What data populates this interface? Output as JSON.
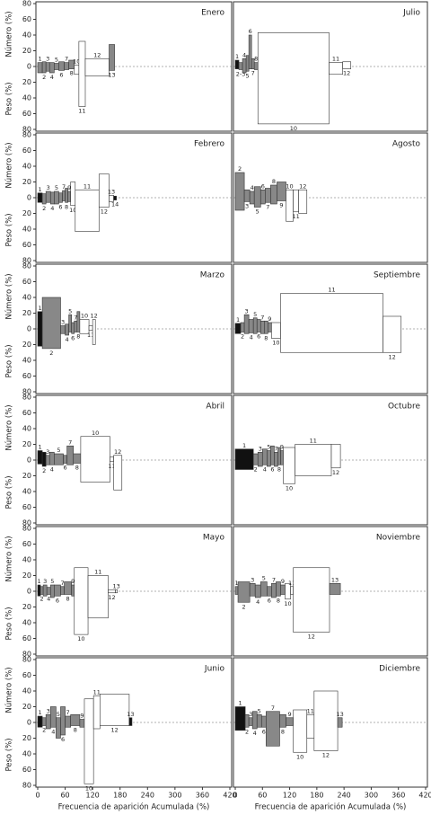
{
  "axes": {
    "xlim": [
      0,
      420
    ],
    "xticks": [
      0,
      60,
      120,
      180,
      240,
      300,
      360,
      420
    ],
    "ylim": [
      0,
      80
    ],
    "number_ticks": [
      80,
      60,
      40,
      20,
      0
    ],
    "weight_ticks": [
      20,
      40,
      60,
      80
    ],
    "x_label": "Frecuencia de aparición Acumulada (%)",
    "y_label_number": "Número (%)",
    "y_label_weight": "Peso (%)"
  },
  "chart_data": [
    {
      "type": "costello",
      "title": "Enero",
      "categories": [
        "1",
        "2",
        "3",
        "4",
        "5",
        "6",
        "7",
        "8",
        "10",
        "11",
        "12",
        "13"
      ],
      "frecuencia": [
        10,
        8,
        8,
        10,
        10,
        12,
        10,
        12,
        10,
        14,
        52,
        12
      ],
      "numero": [
        5,
        6,
        5,
        5,
        4,
        6,
        5,
        8,
        2,
        32,
        10,
        28
      ],
      "peso": [
        8,
        8,
        6,
        8,
        4,
        5,
        4,
        3,
        10,
        51,
        12,
        5
      ],
      "colors": [
        "#888",
        "#888",
        "#888",
        "#888",
        "#888",
        "#888",
        "#888",
        "#888",
        "#fff",
        "#fff",
        "#fff",
        "#888"
      ]
    },
    {
      "type": "costello",
      "title": "Julio",
      "categories": [
        "1",
        "2-3",
        "4",
        "5",
        "6",
        "7",
        "8",
        "10",
        "11",
        "12"
      ],
      "frecuencia": [
        8,
        8,
        8,
        6,
        6,
        6,
        8,
        157,
        30,
        18
      ],
      "numero": [
        8,
        5,
        10,
        14,
        40,
        10,
        5,
        43,
        5,
        6
      ],
      "peso": [
        3,
        4,
        8,
        6,
        3,
        3,
        4,
        73,
        10,
        3
      ],
      "colors": [
        "#111",
        "#888",
        "#888",
        "#888",
        "#888",
        "#888",
        "#888",
        "#fff",
        "#fff",
        "#fff"
      ]
    },
    {
      "type": "costello",
      "title": "Febrero",
      "categories": [
        "1",
        "2",
        "3",
        "4",
        "5",
        "6",
        "7",
        "8",
        "9",
        "10",
        "11",
        "12",
        "13",
        "14"
      ],
      "frecuencia": [
        10,
        8,
        10,
        8,
        10,
        8,
        6,
        6,
        6,
        10,
        52,
        22,
        10,
        6
      ],
      "numero": [
        6,
        5,
        8,
        7,
        8,
        6,
        9,
        12,
        8,
        20,
        10,
        30,
        3,
        2
      ],
      "peso": [
        6,
        8,
        6,
        8,
        8,
        6,
        4,
        6,
        5,
        10,
        43,
        12,
        5,
        3
      ],
      "colors": [
        "#111",
        "#888",
        "#888",
        "#888",
        "#888",
        "#888",
        "#888",
        "#888",
        "#888",
        "#fff",
        "#fff",
        "#fff",
        "#fff",
        "#111"
      ]
    },
    {
      "type": "costello",
      "title": "Agosto",
      "categories": [
        "2",
        "3",
        "4",
        "5",
        "6",
        "7",
        "8",
        "9",
        "10",
        "11",
        "12"
      ],
      "frecuencia": [
        20,
        12,
        10,
        14,
        10,
        12,
        14,
        20,
        16,
        12,
        18
      ],
      "numero": [
        32,
        10,
        8,
        14,
        10,
        12,
        16,
        20,
        10,
        10,
        10
      ],
      "peso": [
        16,
        5,
        8,
        12,
        8,
        6,
        8,
        4,
        30,
        18,
        20
      ],
      "colors": [
        "#888",
        "#888",
        "#888",
        "#888",
        "#888",
        "#888",
        "#888",
        "#888",
        "#fff",
        "#fff",
        "#fff"
      ]
    },
    {
      "type": "costello",
      "title": "Marzo",
      "categories": [
        "1",
        "2",
        "3",
        "4",
        "5",
        "6",
        "7",
        "8",
        "10",
        "11",
        "12"
      ],
      "frecuencia": [
        10,
        40,
        10,
        8,
        6,
        6,
        6,
        6,
        20,
        8,
        6
      ],
      "numero": [
        22,
        40,
        4,
        6,
        18,
        8,
        10,
        22,
        12,
        4,
        12
      ],
      "peso": [
        22,
        25,
        6,
        8,
        4,
        6,
        4,
        4,
        6,
        2,
        20
      ],
      "colors": [
        "#111",
        "#888",
        "#888",
        "#888",
        "#888",
        "#888",
        "#888",
        "#888",
        "#fff",
        "#fff",
        "#fff"
      ]
    },
    {
      "type": "costello",
      "title": "Septiembre",
      "categories": [
        "1",
        "2",
        "3",
        "4",
        "5",
        "6",
        "7",
        "8",
        "9",
        "10",
        "11",
        "12"
      ],
      "frecuencia": [
        12,
        8,
        10,
        10,
        8,
        8,
        8,
        8,
        8,
        20,
        226,
        40
      ],
      "numero": [
        7,
        8,
        18,
        12,
        14,
        12,
        10,
        10,
        8,
        8,
        45,
        16
      ],
      "peso": [
        6,
        4,
        6,
        5,
        6,
        4,
        6,
        6,
        4,
        12,
        30,
        30
      ],
      "colors": [
        "#111",
        "#888",
        "#888",
        "#888",
        "#888",
        "#888",
        "#888",
        "#888",
        "#888",
        "#fff",
        "#fff",
        "#fff"
      ]
    },
    {
      "type": "costello",
      "title": "Abril",
      "categories": [
        "1",
        "2",
        "3",
        "4",
        "5",
        "6",
        "7",
        "8",
        "10",
        "11",
        "12"
      ],
      "frecuencia": [
        10,
        8,
        8,
        10,
        20,
        8,
        14,
        16,
        64,
        8,
        18
      ],
      "numero": [
        12,
        10,
        6,
        10,
        8,
        6,
        18,
        8,
        30,
        4,
        6
      ],
      "peso": [
        5,
        8,
        6,
        6,
        6,
        4,
        6,
        4,
        28,
        2,
        38
      ],
      "colors": [
        "#111",
        "#111",
        "#888",
        "#888",
        "#888",
        "#888",
        "#888",
        "#888",
        "#fff",
        "#fff",
        "#fff"
      ]
    },
    {
      "type": "costello",
      "title": "Octubre",
      "categories": [
        "1",
        "2",
        "3",
        "4",
        "5",
        "6",
        "7",
        "8",
        "9",
        "10",
        "11",
        "12"
      ],
      "frecuencia": [
        40,
        10,
        10,
        10,
        8,
        8,
        8,
        6,
        6,
        26,
        80,
        20
      ],
      "numero": [
        14,
        8,
        10,
        14,
        12,
        18,
        10,
        16,
        12,
        16,
        20,
        20
      ],
      "peso": [
        12,
        6,
        8,
        6,
        8,
        6,
        8,
        6,
        6,
        30,
        20,
        10
      ],
      "colors": [
        "#111",
        "#888",
        "#888",
        "#888",
        "#888",
        "#888",
        "#888",
        "#888",
        "#888",
        "#fff",
        "#fff",
        "#fff"
      ]
    },
    {
      "type": "costello",
      "title": "Mayo",
      "categories": [
        "1",
        "2",
        "3",
        "4",
        "5",
        "6",
        "7",
        "8",
        "9",
        "10",
        "11",
        "12",
        "13"
      ],
      "frecuencia": [
        6,
        6,
        8,
        8,
        8,
        14,
        8,
        16,
        6,
        30,
        44,
        16,
        4
      ],
      "numero": [
        8,
        6,
        8,
        5,
        8,
        8,
        6,
        12,
        8,
        30,
        20,
        2,
        2
      ],
      "peso": [
        6,
        4,
        6,
        4,
        8,
        6,
        4,
        4,
        6,
        55,
        34,
        2,
        2
      ],
      "colors": [
        "#111",
        "#888",
        "#888",
        "#888",
        "#888",
        "#888",
        "#888",
        "#888",
        "#888",
        "#fff",
        "#fff",
        "#fff",
        "#fff"
      ]
    },
    {
      "type": "costello",
      "title": "Noviembre",
      "categories": [
        "1",
        "2",
        "3",
        "4",
        "5",
        "6",
        "7",
        "8",
        "9",
        "10",
        "11",
        "12",
        "13"
      ],
      "frecuencia": [
        6,
        26,
        12,
        12,
        14,
        10,
        10,
        10,
        10,
        12,
        6,
        80,
        24
      ],
      "numero": [
        6,
        12,
        10,
        8,
        12,
        6,
        10,
        12,
        8,
        10,
        6,
        30,
        10
      ],
      "peso": [
        4,
        14,
        6,
        8,
        6,
        6,
        8,
        6,
        4,
        10,
        4,
        52,
        4
      ],
      "colors": [
        "#888",
        "#888",
        "#888",
        "#888",
        "#888",
        "#888",
        "#888",
        "#888",
        "#888",
        "#fff",
        "#fff",
        "#fff",
        "#888"
      ]
    },
    {
      "type": "costello",
      "title": "Junio",
      "categories": [
        "1",
        "2",
        "3",
        "4",
        "5",
        "6",
        "7",
        "8",
        "9",
        "10",
        "11",
        "12",
        "13"
      ],
      "frecuencia": [
        10,
        8,
        10,
        12,
        10,
        10,
        12,
        20,
        10,
        20,
        14,
        64,
        6
      ],
      "numero": [
        8,
        6,
        10,
        20,
        6,
        20,
        8,
        10,
        4,
        30,
        34,
        36,
        6
      ],
      "peso": [
        6,
        4,
        8,
        6,
        20,
        16,
        6,
        4,
        6,
        78,
        8,
        4,
        4
      ],
      "colors": [
        "#111",
        "#888",
        "#888",
        "#888",
        "#888",
        "#888",
        "#888",
        "#888",
        "#888",
        "#fff",
        "#fff",
        "#fff",
        "#111"
      ]
    },
    {
      "type": "costello",
      "title": "Diciembre",
      "categories": [
        "1",
        "2",
        "3",
        "4",
        "5",
        "6",
        "7",
        "8",
        "9",
        "10",
        "11",
        "12",
        "13"
      ],
      "frecuencia": [
        22,
        8,
        8,
        10,
        10,
        10,
        30,
        14,
        16,
        30,
        16,
        52,
        10
      ],
      "numero": [
        20,
        10,
        6,
        14,
        10,
        8,
        14,
        10,
        6,
        16,
        10,
        40,
        6
      ],
      "peso": [
        10,
        6,
        4,
        8,
        6,
        6,
        30,
        6,
        4,
        38,
        20,
        36,
        6
      ],
      "colors": [
        "#111",
        "#888",
        "#888",
        "#888",
        "#888",
        "#888",
        "#888",
        "#888",
        "#888",
        "#fff",
        "#fff",
        "#fff",
        "#888"
      ]
    }
  ]
}
